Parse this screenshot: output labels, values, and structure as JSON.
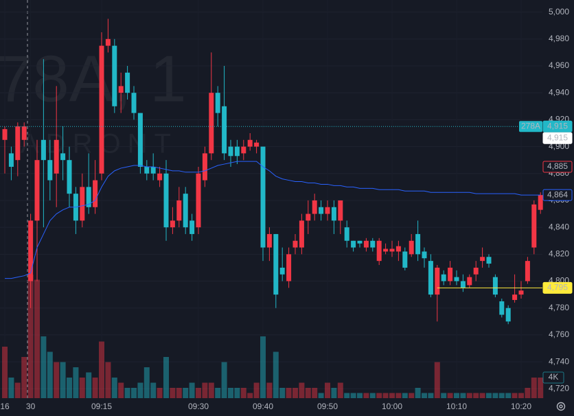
{
  "chart_data": {
    "type": "candlestick",
    "watermark": [
      "78A, 1",
      "ADRONT"
    ],
    "up_color": "#f23645",
    "down_color": "#22b8c8",
    "vwap_color": "#2962ff",
    "ylim": [
      4713,
      5009
    ],
    "yticks": [
      {
        "value": 5000,
        "label": "5,000"
      },
      {
        "value": 4980,
        "label": "4,980"
      },
      {
        "value": 4960,
        "label": "4,960"
      },
      {
        "value": 4940,
        "label": "4,940"
      },
      {
        "value": 4920,
        "label": "4,920"
      },
      {
        "value": 4900,
        "label": "4,900"
      },
      {
        "value": 4880,
        "label": "4,880"
      },
      {
        "value": 4860,
        "label": "4,860"
      },
      {
        "value": 4840,
        "label": "4,840"
      },
      {
        "value": 4820,
        "label": "4,820"
      },
      {
        "value": 4800,
        "label": "4,800"
      },
      {
        "value": 4780,
        "label": "4,780"
      },
      {
        "value": 4760,
        "label": "4,760"
      },
      {
        "value": 4740,
        "label": "4,740"
      },
      {
        "value": 4720,
        "label": "4,720"
      }
    ],
    "xticks": [
      {
        "value": 0,
        "label": "16"
      },
      {
        "value": 4,
        "label": "30"
      },
      {
        "value": 15,
        "label": "09:15"
      },
      {
        "value": 30,
        "label": "09:30"
      },
      {
        "value": 40,
        "label": "09:40"
      },
      {
        "value": 50,
        "label": "09:50"
      },
      {
        "value": 60,
        "label": "10:00"
      },
      {
        "value": 70,
        "label": "10:10"
      },
      {
        "value": 80,
        "label": "10:20"
      }
    ],
    "grid": true,
    "open": [
      4905,
      4895,
      4890,
      4905,
      4800,
      4845,
      4905,
      4890,
      4880,
      4895,
      4890,
      4865,
      4845,
      4870,
      4855,
      4880,
      4975,
      4975,
      4940,
      4955,
      4940,
      4925,
      4885,
      4885,
      4875,
      4880,
      4840,
      4845,
      4865,
      4845,
      4840,
      4875,
      4895,
      4940,
      4930,
      4900,
      4900,
      4895,
      4900,
      4900,
      4900,
      4825,
      4835,
      4810,
      4800,
      4825,
      4825,
      4845,
      4850,
      4855,
      4850,
      4855,
      4845,
      4840,
      4830,
      4830,
      4825,
      4830,
      4815,
      4822,
      4822,
      4822,
      4822,
      4820,
      4835,
      4822,
      4815,
      4790,
      4805,
      4800,
      4803,
      4800,
      4797,
      4805,
      4815,
      4818,
      4803,
      4785,
      4780,
      4786,
      4790,
      4800,
      4825,
      4853
    ],
    "high": [
      4915,
      4900,
      4918,
      4918,
      4850,
      4905,
      4965,
      4905,
      4945,
      4915,
      4900,
      4870,
      4880,
      4895,
      4890,
      4985,
      4995,
      4980,
      4955,
      4960,
      4945,
      4925,
      4890,
      4895,
      4885,
      4890,
      4855,
      4870,
      4870,
      4850,
      4885,
      4900,
      4970,
      4945,
      4960,
      4905,
      4905,
      4905,
      4910,
      4905,
      4900,
      4840,
      4835,
      4825,
      4825,
      4835,
      4850,
      4860,
      4865,
      4860,
      4860,
      4860,
      4860,
      4845,
      4830,
      4830,
      4832,
      4832,
      4832,
      4828,
      4830,
      4830,
      4825,
      4835,
      4845,
      4825,
      4820,
      4812,
      4808,
      4815,
      4808,
      4805,
      4805,
      4815,
      4825,
      4820,
      4805,
      4787,
      4782,
      4805,
      4800,
      4818,
      4860,
      4866
    ],
    "low": [
      4880,
      4875,
      4878,
      4900,
      4780,
      4800,
      4840,
      4860,
      4855,
      4875,
      4855,
      4835,
      4840,
      4850,
      4850,
      4875,
      4970,
      4925,
      4925,
      4935,
      4920,
      4880,
      4875,
      4875,
      4870,
      4830,
      4835,
      4840,
      4835,
      4830,
      4835,
      4870,
      4890,
      4915,
      4890,
      4885,
      4887,
      4890,
      4897,
      4895,
      4815,
      4815,
      4780,
      4800,
      4795,
      4820,
      4820,
      4835,
      4845,
      4845,
      4845,
      4835,
      4835,
      4825,
      4822,
      4825,
      4822,
      4822,
      4812,
      4820,
      4818,
      4815,
      4808,
      4818,
      4815,
      4810,
      4788,
      4770,
      4797,
      4797,
      4797,
      4792,
      4795,
      4800,
      4810,
      4810,
      4788,
      4773,
      4768,
      4784,
      4787,
      4798,
      4820,
      4850
    ],
    "close": [
      4913,
      4885,
      4915,
      4915,
      4845,
      4890,
      4890,
      4875,
      4905,
      4890,
      4865,
      4845,
      4870,
      4855,
      4875,
      4975,
      4980,
      4930,
      4945,
      4940,
      4925,
      4885,
      4880,
      4880,
      4880,
      4840,
      4845,
      4860,
      4840,
      4835,
      4880,
      4895,
      4940,
      4925,
      4895,
      4893,
      4893,
      4900,
      4905,
      4903,
      4825,
      4835,
      4790,
      4805,
      4820,
      4830,
      4845,
      4850,
      4860,
      4850,
      4855,
      4845,
      4860,
      4830,
      4825,
      4828,
      4830,
      4825,
      4830,
      4824,
      4824,
      4826,
      4810,
      4830,
      4820,
      4817,
      4790,
      4810,
      4800,
      4810,
      4800,
      4795,
      4803,
      4810,
      4818,
      4813,
      4790,
      4775,
      4770,
      4790,
      4793,
      4815,
      4857,
      4864
    ],
    "volume": [
      10,
      4,
      3,
      8,
      24,
      23,
      12,
      9,
      7,
      7,
      4,
      6,
      4,
      5,
      4,
      11,
      7,
      4,
      3,
      2,
      2,
      3,
      6,
      3,
      2,
      8,
      2,
      2,
      2,
      3,
      2,
      3,
      3,
      2,
      7,
      2,
      2,
      2,
      1,
      3,
      12,
      3,
      9,
      2,
      2,
      2,
      3,
      2,
      2,
      1,
      3,
      2,
      3,
      1,
      1,
      1,
      1,
      1,
      1,
      1,
      1,
      1,
      1,
      1,
      2,
      1,
      1,
      7,
      1,
      1,
      1,
      1,
      1,
      1,
      1,
      1,
      1,
      1,
      1,
      1,
      1,
      2,
      4,
      4
    ],
    "vlim": [
      0,
      40
    ],
    "volume_label": {
      "value": 4,
      "label": "4K"
    },
    "vwap": [
      4802,
      4802,
      4803,
      4804,
      4806,
      4825,
      4835,
      4845,
      4850,
      4853,
      4855,
      4855,
      4856,
      4857,
      4860,
      4870,
      4878,
      4882,
      4884,
      4885,
      4886,
      4886,
      4885,
      4885,
      4884,
      4883,
      4882,
      4882,
      4881,
      4881,
      4881,
      4882,
      4884,
      4886,
      4887,
      4888,
      4889,
      4889,
      4889,
      4889,
      4885,
      4882,
      4878,
      4876,
      4875,
      4874,
      4874,
      4873,
      4873,
      4872,
      4872,
      4871,
      4871,
      4870,
      4870,
      4869,
      4869,
      4869,
      4868,
      4868,
      4868,
      4868,
      4867,
      4867,
      4867,
      4867,
      4866,
      4866,
      4866,
      4866,
      4866,
      4866,
      4866,
      4865,
      4865,
      4865,
      4865,
      4865,
      4865,
      4865,
      4864,
      4864,
      4864,
      4864
    ],
    "price_tags": [
      {
        "value": 4915,
        "label": "4,915",
        "tag": "278A",
        "color": "#22b8c8",
        "style": "fill",
        "line": "dotted"
      },
      {
        "value": 4915,
        "label": "4,915",
        "color": "#ffffff",
        "style": "fill"
      },
      {
        "value": 4885,
        "label": "4,885",
        "color": "#f23645",
        "style": "outline"
      },
      {
        "value": 4864,
        "label": "4,864",
        "color": "#2962ff",
        "style": "outline"
      },
      {
        "value": 4795,
        "label": "4,795",
        "color": "#ffeb3b",
        "style": "fill",
        "line": "solid",
        "from": 67
      }
    ]
  }
}
